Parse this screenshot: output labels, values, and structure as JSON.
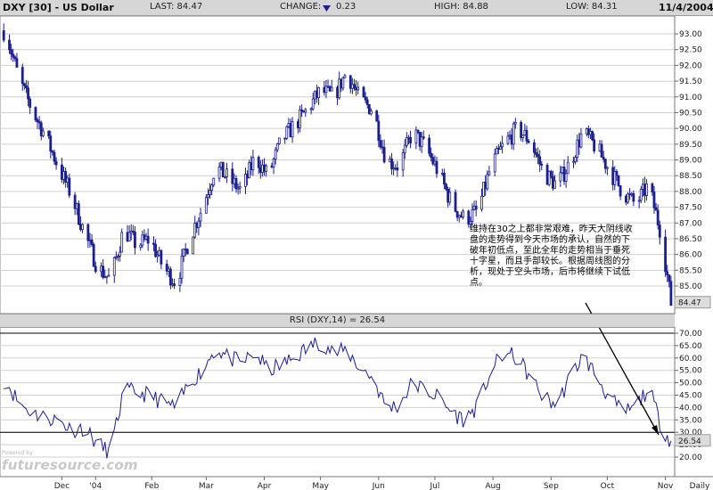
{
  "header": {
    "symbol": "DXY [30] - US Dollar",
    "last": "LAST: 84.47",
    "change_label": "CHANGE:",
    "change_value": "0.23",
    "high": "HIGH: 84.88",
    "low": "LOW: 84.31",
    "date": "11/4/2004"
  },
  "rsi_title": "RSI (DXY,14) = 26.54",
  "annotation": "维持在30之上都非常艰难，昨天大阴线收盘的走势得到今天市场的承认，自然的下破年初低点，至此全年的走势相当于垂死十字星，而且手部较长。根据周线图的分析，现处于空头市场，后市将继续下试低点。",
  "watermark": {
    "small": "Powered by",
    "big": "futuresource.com"
  },
  "colors": {
    "series": "#1b1f8f",
    "header_bg": "#d6d6d6",
    "last_box": "#dcdcdc"
  },
  "chart_data": [
    {
      "type": "candlestick",
      "title": "DXY [30] - US Dollar",
      "frequency": "Daily",
      "x_ticks": [
        "Dec",
        "'04",
        "Feb",
        "Mar",
        "Apr",
        "May",
        "Jun",
        "Jul",
        "Aug",
        "Sep",
        "Oct",
        "Nov",
        "Daily"
      ],
      "y_ticks": [
        "93.00",
        "92.50",
        "92.00",
        "91.50",
        "91.00",
        "90.50",
        "90.00",
        "89.50",
        "89.00",
        "88.50",
        "88.00",
        "87.50",
        "87.00",
        "86.50",
        "86.00",
        "85.50",
        "85.00"
      ],
      "ylim": [
        84.2,
        93.5
      ],
      "last_value": "84.47",
      "grid": true,
      "approx_close_by_date": [
        [
          "2003-11-15",
          93.1
        ],
        [
          "2003-11-22",
          91.6
        ],
        [
          "2003-11-29",
          90.6
        ],
        [
          "2003-12-06",
          89.8
        ],
        [
          "2003-12-13",
          88.8
        ],
        [
          "2003-12-20",
          87.9
        ],
        [
          "2003-12-27",
          86.7
        ],
        [
          "2004-01-03",
          85.6
        ],
        [
          "2004-01-10",
          85.2
        ],
        [
          "2004-01-17",
          86.8
        ],
        [
          "2004-01-24",
          86.3
        ],
        [
          "2004-01-31",
          86.5
        ],
        [
          "2004-02-07",
          85.6
        ],
        [
          "2004-02-14",
          85.1
        ],
        [
          "2004-02-21",
          86.5
        ],
        [
          "2004-02-28",
          87.5
        ],
        [
          "2004-03-06",
          88.8
        ],
        [
          "2004-03-13",
          88.4
        ],
        [
          "2004-03-20",
          88.0
        ],
        [
          "2004-03-27",
          89.1
        ],
        [
          "2004-04-03",
          88.5
        ],
        [
          "2004-04-10",
          89.6
        ],
        [
          "2004-04-17",
          90.1
        ],
        [
          "2004-04-24",
          90.6
        ],
        [
          "2004-05-01",
          91.2
        ],
        [
          "2004-05-08",
          91.0
        ],
        [
          "2004-05-15",
          91.8
        ],
        [
          "2004-05-22",
          90.9
        ],
        [
          "2004-05-29",
          90.6
        ],
        [
          "2004-06-05",
          89.0
        ],
        [
          "2004-06-12",
          88.8
        ],
        [
          "2004-06-19",
          89.9
        ],
        [
          "2004-06-26",
          89.4
        ],
        [
          "2004-07-03",
          88.6
        ],
        [
          "2004-07-10",
          87.6
        ],
        [
          "2004-07-17",
          87.1
        ],
        [
          "2004-07-24",
          87.4
        ],
        [
          "2004-07-31",
          88.8
        ],
        [
          "2004-08-07",
          89.5
        ],
        [
          "2004-08-14",
          90.0
        ],
        [
          "2004-08-21",
          89.6
        ],
        [
          "2004-08-28",
          88.6
        ],
        [
          "2004-09-04",
          88.2
        ],
        [
          "2004-09-11",
          88.9
        ],
        [
          "2004-09-18",
          89.9
        ],
        [
          "2004-09-25",
          89.4
        ],
        [
          "2004-10-02",
          88.7
        ],
        [
          "2004-10-09",
          88.0
        ],
        [
          "2004-10-16",
          87.6
        ],
        [
          "2004-10-23",
          88.2
        ],
        [
          "2004-10-30",
          86.6
        ],
        [
          "2004-11-04",
          84.47
        ]
      ]
    },
    {
      "type": "line",
      "title": "RSI (DXY,14) = 26.54",
      "y_ticks": [
        "70.00",
        "65.00",
        "60.00",
        "55.00",
        "50.00",
        "45.00",
        "40.00",
        "35.00",
        "30.00",
        "25.00",
        "20.00"
      ],
      "ylim": [
        18,
        72
      ],
      "reference_lines": [
        70,
        30
      ],
      "last_value": "26.54",
      "approx_values_by_date": [
        [
          "2003-11-15",
          51
        ],
        [
          "2003-11-22",
          42
        ],
        [
          "2003-11-29",
          38
        ],
        [
          "2003-12-06",
          36
        ],
        [
          "2003-12-13",
          35
        ],
        [
          "2003-12-20",
          31
        ],
        [
          "2003-12-27",
          32
        ],
        [
          "2004-01-03",
          25
        ],
        [
          "2004-01-10",
          22
        ],
        [
          "2004-01-17",
          47
        ],
        [
          "2004-01-24",
          46
        ],
        [
          "2004-01-31",
          45
        ],
        [
          "2004-02-07",
          42
        ],
        [
          "2004-02-14",
          40
        ],
        [
          "2004-02-21",
          50
        ],
        [
          "2004-02-28",
          55
        ],
        [
          "2004-03-06",
          64
        ],
        [
          "2004-03-13",
          60
        ],
        [
          "2004-03-20",
          58
        ],
        [
          "2004-03-27",
          62
        ],
        [
          "2004-04-03",
          55
        ],
        [
          "2004-04-10",
          57
        ],
        [
          "2004-04-17",
          60
        ],
        [
          "2004-04-24",
          64
        ],
        [
          "2004-05-01",
          67
        ],
        [
          "2004-05-08",
          62
        ],
        [
          "2004-05-15",
          63
        ],
        [
          "2004-05-22",
          56
        ],
        [
          "2004-05-29",
          52
        ],
        [
          "2004-06-05",
          40
        ],
        [
          "2004-06-12",
          41
        ],
        [
          "2004-06-19",
          50
        ],
        [
          "2004-06-26",
          47
        ],
        [
          "2004-07-03",
          44
        ],
        [
          "2004-07-10",
          38
        ],
        [
          "2004-07-17",
          35
        ],
        [
          "2004-07-24",
          41
        ],
        [
          "2004-07-31",
          55
        ],
        [
          "2004-08-07",
          62
        ],
        [
          "2004-08-14",
          60
        ],
        [
          "2004-08-21",
          52
        ],
        [
          "2004-08-28",
          44
        ],
        [
          "2004-09-04",
          41
        ],
        [
          "2004-09-11",
          52
        ],
        [
          "2004-09-18",
          61
        ],
        [
          "2004-09-25",
          53
        ],
        [
          "2004-10-02",
          44
        ],
        [
          "2004-10-09",
          38
        ],
        [
          "2004-10-16",
          40
        ],
        [
          "2004-10-23",
          48
        ],
        [
          "2004-10-30",
          32
        ],
        [
          "2004-11-04",
          26.54
        ]
      ]
    }
  ]
}
